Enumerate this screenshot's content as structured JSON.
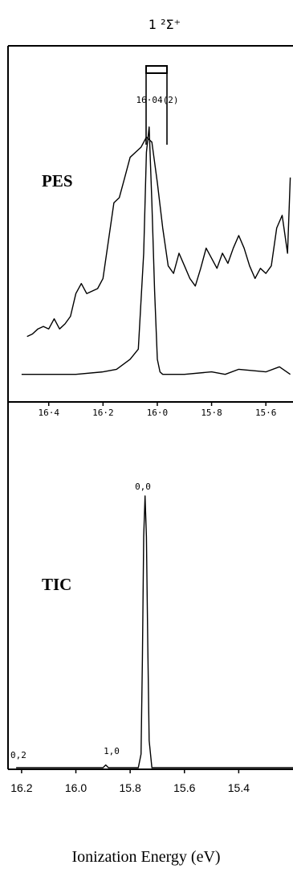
{
  "chart_data": [
    {
      "type": "line",
      "title": "1 ²Σ⁺",
      "panel_label": "PES",
      "xlabel": "",
      "ylabel": "",
      "x_reversed": true,
      "xlim": [
        16.55,
        15.5
      ],
      "xticks": [
        {
          "value": 16.4,
          "label": "16·4"
        },
        {
          "value": 16.2,
          "label": "16·2"
        },
        {
          "value": 16.0,
          "label": "16·0"
        },
        {
          "value": 15.8,
          "label": "15·8"
        },
        {
          "value": 15.6,
          "label": "15·6"
        }
      ],
      "annotations": [
        {
          "text": "16·04(2)",
          "x": 16.04
        }
      ],
      "series": [
        {
          "x": [
            16.48,
            16.46,
            16.44,
            16.42,
            16.4,
            16.38,
            16.36,
            16.34,
            16.32,
            16.3,
            16.28,
            16.26,
            16.24,
            16.22,
            16.2,
            16.18,
            16.16,
            16.14,
            16.12,
            16.1,
            16.08,
            16.06,
            16.04,
            16.02,
            16.0,
            15.98,
            15.96,
            15.94,
            15.92,
            15.9,
            15.88,
            15.86,
            15.84,
            15.82,
            15.8,
            15.78,
            15.76,
            15.74,
            15.72,
            15.7,
            15.68,
            15.66,
            15.64,
            15.62,
            15.6,
            15.58,
            15.56,
            15.54,
            15.52,
            15.51
          ],
          "y": [
            0.17,
            0.18,
            0.2,
            0.21,
            0.2,
            0.24,
            0.2,
            0.22,
            0.25,
            0.34,
            0.38,
            0.34,
            0.35,
            0.36,
            0.4,
            0.55,
            0.7,
            0.72,
            0.8,
            0.88,
            0.9,
            0.92,
            0.96,
            0.94,
            0.78,
            0.6,
            0.45,
            0.42,
            0.5,
            0.45,
            0.4,
            0.37,
            0.44,
            0.52,
            0.48,
            0.44,
            0.5,
            0.46,
            0.52,
            0.57,
            0.52,
            0.45,
            0.4,
            0.44,
            0.42,
            0.45,
            0.6,
            0.65,
            0.5,
            0.8
          ]
        },
        {
          "x": [
            16.5,
            16.4,
            16.3,
            16.2,
            16.15,
            16.1,
            16.07,
            16.05,
            16.04,
            16.03,
            16.02,
            16.01,
            16.0,
            15.99,
            15.98,
            15.95,
            15.9,
            15.8,
            15.75,
            15.7,
            15.6,
            15.55,
            15.51
          ],
          "y": [
            0.02,
            0.02,
            0.02,
            0.03,
            0.04,
            0.08,
            0.12,
            0.5,
            0.9,
            1.0,
            0.7,
            0.35,
            0.08,
            0.03,
            0.02,
            0.02,
            0.02,
            0.03,
            0.02,
            0.04,
            0.03,
            0.05,
            0.02
          ]
        }
      ]
    },
    {
      "type": "line",
      "panel_label": "TIC",
      "xlabel": "Ionization Energy (eV)",
      "ylabel": "",
      "x_reversed": true,
      "xlim": [
        16.25,
        15.2
      ],
      "xticks": [
        {
          "value": 16.2,
          "label": "16.2"
        },
        {
          "value": 16.0,
          "label": "16.0"
        },
        {
          "value": 15.8,
          "label": "15.8"
        },
        {
          "value": 15.6,
          "label": "15.6"
        },
        {
          "value": 15.4,
          "label": "15.4"
        }
      ],
      "annotations": [
        {
          "text": "0,0",
          "x": 15.745
        },
        {
          "text": "1,0",
          "x": 15.895
        },
        {
          "text": "0,2",
          "x": 16.23
        }
      ],
      "series": [
        {
          "x": [
            16.22,
            16.0,
            15.9,
            15.89,
            15.88,
            15.8,
            15.77,
            15.76,
            15.755,
            15.75,
            15.745,
            15.74,
            15.735,
            15.73,
            15.72,
            15.7,
            15.5,
            15.3,
            15.2
          ],
          "y": [
            0.0,
            0.0,
            0.0,
            0.01,
            0.0,
            0.0,
            0.0,
            0.05,
            0.4,
            0.85,
            1.0,
            0.85,
            0.45,
            0.1,
            0.0,
            0.0,
            0.0,
            0.0,
            0.0
          ]
        }
      ]
    }
  ]
}
